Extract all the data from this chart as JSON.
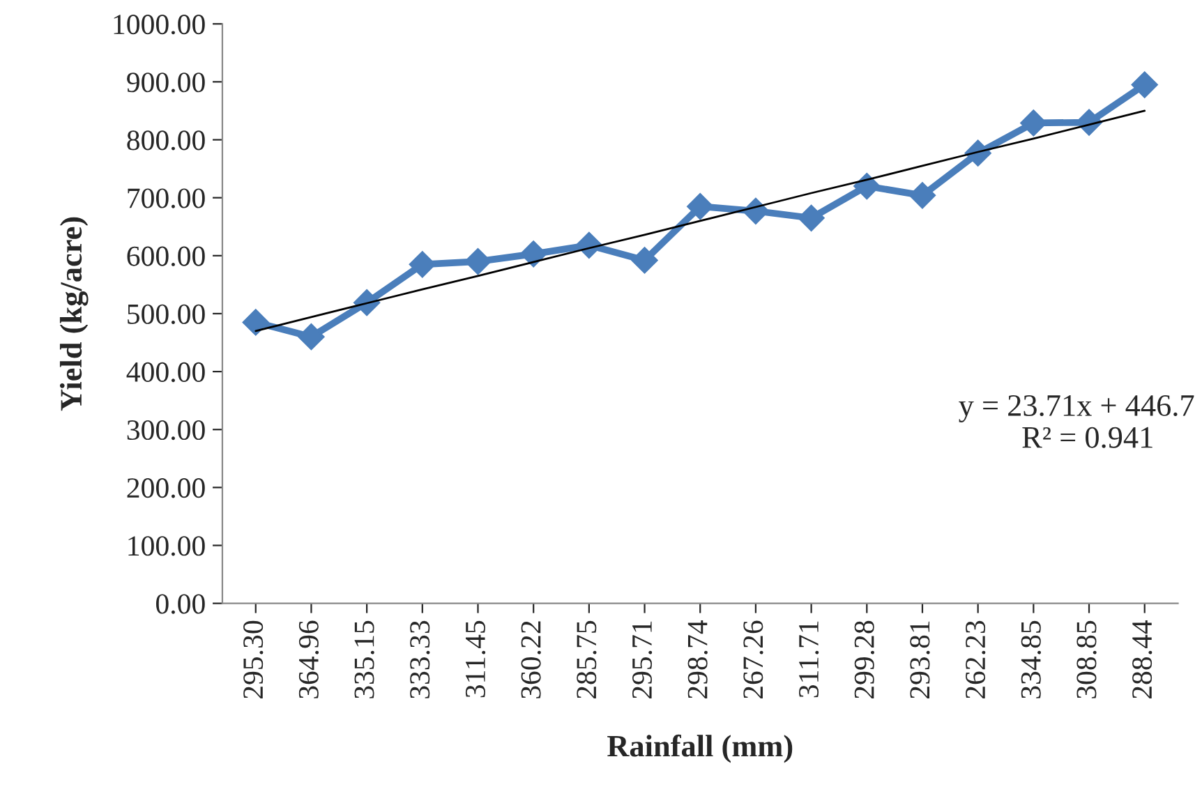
{
  "chart_data": {
    "type": "line",
    "xlabel": "Rainfall (mm)",
    "ylabel": "Yield (kg/acre)",
    "categories": [
      "295.30",
      "364.96",
      "335.15",
      "333.33",
      "311.45",
      "360.22",
      "285.75",
      "295.71",
      "298.74",
      "267.26",
      "311.71",
      "299.28",
      "293.81",
      "262.23",
      "334.85",
      "308.85",
      "288.44"
    ],
    "series": [
      {
        "color": "#4a7ebb",
        "marker": "diamond",
        "line_style": "solid",
        "values": [
          485,
          460,
          519,
          585,
          590,
          603,
          618,
          592,
          685,
          677,
          665,
          720,
          704,
          777,
          829,
          830,
          895
        ]
      },
      {
        "color": "#000000",
        "marker": "none",
        "line_style": "solid",
        "values": [
          470,
          494,
          518,
          542,
          565,
          589,
          613,
          636,
          660,
          684,
          708,
          731,
          755,
          779,
          802,
          826,
          850
        ]
      }
    ],
    "ylim": [
      0,
      1000
    ],
    "yticks": [
      {
        "value": 0,
        "label": "0.00"
      },
      {
        "value": 100,
        "label": "100.00"
      },
      {
        "value": 200,
        "label": "200.00"
      },
      {
        "value": 300,
        "label": "300.00"
      },
      {
        "value": 400,
        "label": "400.00"
      },
      {
        "value": 500,
        "label": "500.00"
      },
      {
        "value": 600,
        "label": "600.00"
      },
      {
        "value": 700,
        "label": "700.00"
      },
      {
        "value": 800,
        "label": "800.00"
      },
      {
        "value": 900,
        "label": "900.00"
      },
      {
        "value": 1000,
        "label": "1000.00"
      }
    ],
    "annotations": [
      "y = 23.71x + 446.7",
      "R² = 0.941"
    ],
    "grid": false,
    "legend": false
  }
}
